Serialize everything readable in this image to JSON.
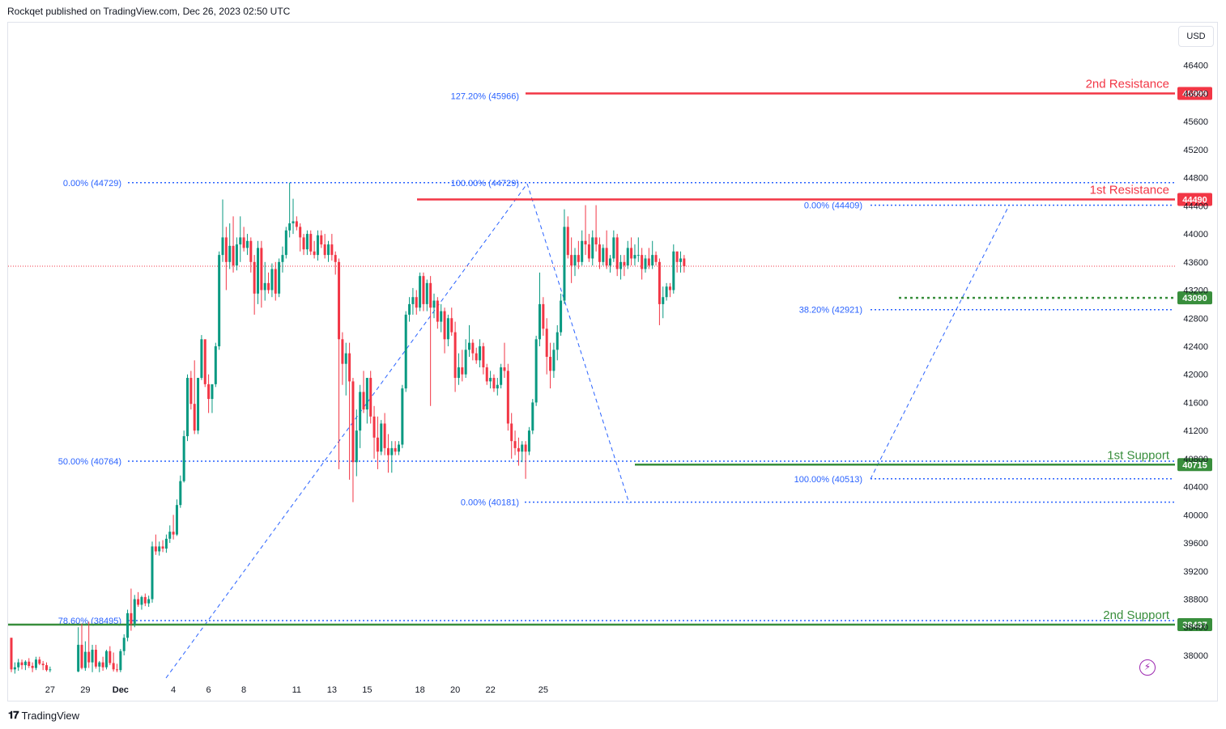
{
  "header": {
    "text": "Rockqet published on TradingView.com, Dec 26, 2023 02:50 UTC"
  },
  "footer": {
    "brand": "TradingView",
    "brand_icon": "tradingview-logo-icon"
  },
  "price_axis": {
    "currency": "USD"
  },
  "colors": {
    "up": "#089981",
    "down": "#f23645",
    "fib": "#2962ff",
    "resistance": "#f23645",
    "support": "#388e3c",
    "current_price_line": "#f23645",
    "axis_text": "#131722",
    "fib_text": "#2962ff"
  },
  "chart_data": {
    "type": "candlestick",
    "title": "",
    "xlabel": "",
    "ylabel": "",
    "ylim": [
      37700,
      46800
    ],
    "y_ticks": [
      38000,
      38400,
      38800,
      39200,
      39600,
      40000,
      40400,
      40800,
      41200,
      41600,
      42000,
      42400,
      42800,
      43200,
      43600,
      44000,
      44400,
      44800,
      45200,
      45600,
      46000,
      46400
    ],
    "x_ticks": [
      {
        "label": "27",
        "bar": 11
      },
      {
        "label": "29",
        "bar": 21
      },
      {
        "label": "Dec",
        "bar": 31
      },
      {
        "label": "4",
        "bar": 46
      },
      {
        "label": "6",
        "bar": 56
      },
      {
        "label": "8",
        "bar": 66
      },
      {
        "label": "11",
        "bar": 81
      },
      {
        "label": "13",
        "bar": 91
      },
      {
        "label": "15",
        "bar": 101
      },
      {
        "label": "18",
        "bar": 116
      },
      {
        "label": "20",
        "bar": 126
      },
      {
        "label": "22",
        "bar": 136
      },
      {
        "label": "25",
        "bar": 151
      }
    ],
    "bar_interval": "4h",
    "candles": [
      [
        38250,
        38250,
        37760,
        37800
      ],
      [
        37800,
        37900,
        37740,
        37830
      ],
      [
        37830,
        37950,
        37780,
        37900
      ],
      [
        37900,
        37940,
        37800,
        37860
      ],
      [
        37860,
        37930,
        37790,
        37910
      ],
      [
        37910,
        37960,
        37820,
        37850
      ],
      [
        37850,
        37900,
        37760,
        37820
      ],
      [
        37820,
        37980,
        37790,
        37940
      ],
      [
        37940,
        37980,
        37860,
        37880
      ],
      [
        37880,
        37920,
        37790,
        37860
      ],
      [
        37860,
        37900,
        37770,
        37790
      ],
      [
        37790,
        37840,
        37760,
        37800
      ],
      [
        null,
        null,
        null,
        null
      ],
      [
        null,
        null,
        null,
        null
      ],
      [
        null,
        null,
        null,
        null
      ],
      [
        null,
        null,
        null,
        null
      ],
      [
        null,
        null,
        null,
        null
      ],
      [
        null,
        null,
        null,
        null
      ],
      [
        null,
        null,
        null,
        null
      ],
      [
        37770,
        38400,
        37760,
        38150
      ],
      [
        38150,
        38450,
        37800,
        37820
      ],
      [
        37820,
        38200,
        37780,
        38050
      ],
      [
        38050,
        38480,
        37820,
        37900
      ],
      [
        37900,
        38150,
        37760,
        38080
      ],
      [
        38080,
        38150,
        37810,
        37840
      ],
      [
        37840,
        37920,
        37760,
        37900
      ],
      [
        37900,
        37980,
        37780,
        37830
      ],
      [
        37830,
        38080,
        37800,
        38060
      ],
      [
        38060,
        38130,
        37860,
        37890
      ],
      [
        37890,
        38040,
        37770,
        37800
      ],
      [
        37800,
        37880,
        37760,
        37790
      ],
      [
        37790,
        38090,
        37760,
        38060
      ],
      [
        38060,
        38300,
        38000,
        38250
      ],
      [
        38250,
        38650,
        38200,
        38600
      ],
      [
        38600,
        38950,
        38350,
        38450
      ],
      [
        38450,
        38860,
        38400,
        38800
      ],
      [
        38800,
        38900,
        38690,
        38720
      ],
      [
        38720,
        38850,
        38650,
        38830
      ],
      [
        38830,
        38880,
        38700,
        38740
      ],
      [
        38740,
        38850,
        38690,
        38800
      ],
      [
        38800,
        39620,
        38750,
        39550
      ],
      [
        39550,
        39720,
        39430,
        39480
      ],
      [
        39480,
        39620,
        39420,
        39550
      ],
      [
        39550,
        39640,
        39470,
        39520
      ],
      [
        39520,
        39720,
        39460,
        39660
      ],
      [
        39660,
        39850,
        39600,
        39760
      ],
      [
        39760,
        40000,
        39650,
        39720
      ],
      [
        39720,
        40220,
        39700,
        40140
      ],
      [
        40140,
        40560,
        40100,
        40480
      ],
      [
        40480,
        41200,
        40460,
        41120
      ],
      [
        41120,
        42000,
        41050,
        41950
      ],
      [
        41950,
        42050,
        41500,
        41580
      ],
      [
        41580,
        42200,
        41150,
        41200
      ],
      [
        41200,
        41950,
        41150,
        41950
      ],
      [
        41950,
        42560,
        41920,
        42500
      ],
      [
        42500,
        42200,
        41820,
        41860
      ],
      [
        41860,
        42000,
        41450,
        41650
      ],
      [
        41650,
        41840,
        41450,
        41860
      ],
      [
        41860,
        42450,
        41820,
        42400
      ],
      [
        42400,
        43750,
        42350,
        43700
      ],
      [
        43700,
        44490,
        43600,
        43950
      ],
      [
        43950,
        44100,
        43200,
        43600
      ],
      [
        43600,
        44150,
        43500,
        43830
      ],
      [
        43830,
        44250,
        43450,
        43550
      ],
      [
        43550,
        43950,
        43480,
        43850
      ],
      [
        43850,
        44250,
        43600,
        43950
      ],
      [
        43950,
        44100,
        43750,
        43800
      ],
      [
        43800,
        44000,
        43700,
        43900
      ],
      [
        43900,
        43950,
        43450,
        43600
      ],
      [
        43600,
        43700,
        42850,
        43150
      ],
      [
        43150,
        43900,
        43000,
        43800
      ],
      [
        43800,
        43900,
        42950,
        43200
      ],
      [
        43200,
        43600,
        43050,
        43300
      ],
      [
        43300,
        43450,
        43150,
        43200
      ],
      [
        43200,
        43580,
        43100,
        43500
      ],
      [
        43500,
        43600,
        43050,
        43150
      ],
      [
        43150,
        43650,
        43100,
        43600
      ],
      [
        43600,
        43820,
        43450,
        43700
      ],
      [
        43700,
        44100,
        43650,
        44050
      ],
      [
        44050,
        44729,
        43950,
        44150
      ],
      [
        44150,
        44500,
        44000,
        44180
      ],
      [
        44180,
        44250,
        44050,
        44100
      ],
      [
        44100,
        44150,
        43750,
        43950
      ],
      [
        43950,
        44000,
        43700,
        43780
      ],
      [
        43780,
        44050,
        43700,
        44000
      ],
      [
        44000,
        44050,
        43700,
        43750
      ],
      [
        43750,
        43900,
        43650,
        43700
      ],
      [
        43700,
        44050,
        43620,
        43980
      ],
      [
        43980,
        44050,
        43800,
        43850
      ],
      [
        43850,
        44000,
        43650,
        43700
      ],
      [
        43700,
        43900,
        43600,
        43850
      ],
      [
        43850,
        44000,
        43620,
        43700
      ],
      [
        43700,
        43750,
        43420,
        43600
      ],
      [
        43600,
        43650,
        40650,
        42500
      ],
      [
        42500,
        42600,
        41850,
        42150
      ],
      [
        42150,
        42450,
        41700,
        42300
      ],
      [
        42300,
        42450,
        40500,
        41900
      ],
      [
        41900,
        41950,
        40181,
        40750
      ],
      [
        40750,
        41500,
        40550,
        41200
      ],
      [
        41200,
        41850,
        40950,
        41750
      ],
      [
        41750,
        42050,
        41450,
        41500
      ],
      [
        41500,
        41950,
        41300,
        41950
      ],
      [
        41950,
        42050,
        41300,
        41400
      ],
      [
        41400,
        41550,
        40800,
        41100
      ],
      [
        41100,
        41400,
        40650,
        40900
      ],
      [
        40900,
        41350,
        40850,
        41300
      ],
      [
        41300,
        41450,
        40850,
        40950
      ],
      [
        40950,
        41150,
        40600,
        40850
      ],
      [
        40850,
        41050,
        40600,
        40950
      ],
      [
        40950,
        41050,
        40850,
        40900
      ],
      [
        40900,
        41050,
        40850,
        41000
      ],
      [
        41000,
        41850,
        40950,
        41800
      ],
      [
        41800,
        42900,
        41750,
        42850
      ],
      [
        42850,
        43100,
        42750,
        43000
      ],
      [
        43000,
        43230,
        42850,
        43100
      ],
      [
        43100,
        43200,
        42850,
        42950
      ],
      [
        42950,
        43450,
        42900,
        43400
      ],
      [
        43400,
        43450,
        42900,
        43000
      ],
      [
        43000,
        43350,
        42900,
        43300
      ],
      [
        43300,
        43400,
        41550,
        42950
      ],
      [
        42950,
        43150,
        42800,
        43050
      ],
      [
        43050,
        43100,
        42650,
        42750
      ],
      [
        42750,
        43000,
        42600,
        42900
      ],
      [
        42900,
        42950,
        42300,
        42500
      ],
      [
        42500,
        42850,
        42400,
        42800
      ],
      [
        42800,
        42950,
        42550,
        42600
      ],
      [
        42600,
        42750,
        41750,
        41950
      ],
      [
        41950,
        42300,
        41850,
        42100
      ],
      [
        42100,
        42350,
        41900,
        42000
      ],
      [
        42000,
        42500,
        41950,
        42350
      ],
      [
        42350,
        42700,
        42250,
        42450
      ],
      [
        42450,
        42500,
        42200,
        42300
      ],
      [
        42300,
        42380,
        42150,
        42200
      ],
      [
        42200,
        42500,
        42100,
        42400
      ],
      [
        42400,
        42450,
        42000,
        42100
      ],
      [
        42100,
        42150,
        41850,
        41900
      ],
      [
        41900,
        42050,
        41800,
        41950
      ],
      [
        41950,
        42000,
        41750,
        41800
      ],
      [
        41800,
        41950,
        41700,
        41850
      ],
      [
        41850,
        42150,
        41800,
        42100
      ],
      [
        42100,
        42450,
        41950,
        42050
      ],
      [
        42050,
        42150,
        41200,
        41300
      ],
      [
        41300,
        41450,
        40800,
        41050
      ],
      [
        41050,
        41200,
        40850,
        40950
      ],
      [
        40950,
        41100,
        40700,
        40900
      ],
      [
        40900,
        41050,
        40750,
        41000
      ],
      [
        41000,
        41050,
        40513,
        40900
      ],
      [
        40900,
        41250,
        40850,
        41200
      ],
      [
        41200,
        41650,
        41150,
        41600
      ],
      [
        41600,
        42550,
        41550,
        42500
      ],
      [
        42500,
        43450,
        42400,
        43000
      ],
      [
        43000,
        43100,
        42550,
        42650
      ],
      [
        42650,
        42800,
        42000,
        42250
      ],
      [
        42250,
        42450,
        41800,
        42050
      ],
      [
        42050,
        42450,
        41950,
        42350
      ],
      [
        42350,
        42700,
        42200,
        42600
      ],
      [
        42600,
        43150,
        42550,
        43050
      ],
      [
        43050,
        44350,
        43000,
        44100
      ],
      [
        44100,
        44250,
        43650,
        43700
      ],
      [
        43700,
        43950,
        43300,
        43550
      ],
      [
        43550,
        43800,
        43400,
        43700
      ],
      [
        43700,
        43900,
        43500,
        43600
      ],
      [
        43600,
        44050,
        43550,
        43900
      ],
      [
        43900,
        44409,
        43700,
        43850
      ],
      [
        43850,
        44000,
        43600,
        43650
      ],
      [
        43650,
        44050,
        43550,
        43950
      ],
      [
        43950,
        44409,
        43750,
        43850
      ],
      [
        43850,
        43950,
        43500,
        43600
      ],
      [
        43600,
        43850,
        43550,
        43800
      ],
      [
        43800,
        44050,
        43500,
        43550
      ],
      [
        43550,
        43700,
        43450,
        43650
      ],
      [
        43650,
        44050,
        43600,
        43950
      ],
      [
        43950,
        44000,
        43400,
        43500
      ],
      [
        43500,
        43700,
        43350,
        43600
      ],
      [
        43600,
        43700,
        43400,
        43550
      ],
      [
        43550,
        43900,
        43500,
        43800
      ],
      [
        43800,
        43950,
        43550,
        43650
      ],
      [
        43650,
        43850,
        43550,
        43700
      ],
      [
        43700,
        43950,
        43600,
        43700
      ],
      [
        43700,
        43800,
        43350,
        43500
      ],
      [
        43500,
        43700,
        43450,
        43650
      ],
      [
        43650,
        43800,
        43500,
        43550
      ],
      [
        43550,
        43900,
        43500,
        43700
      ],
      [
        43700,
        43750,
        43550,
        43600
      ],
      [
        43600,
        43650,
        42700,
        43000
      ],
      [
        43000,
        43250,
        42800,
        43100
      ],
      [
        43100,
        43300,
        43050,
        43250
      ],
      [
        43250,
        43300,
        43100,
        43200
      ],
      [
        43200,
        43850,
        43150,
        43750
      ],
      [
        43750,
        43750,
        43450,
        43600
      ],
      [
        43600,
        43750,
        43450,
        43650
      ],
      [
        43650,
        43700,
        43450,
        43540
      ]
    ],
    "current_price": 43540,
    "horizontal_levels": [
      {
        "name": "2nd Resistance",
        "value": 45999,
        "label": "45999",
        "kind": "resistance"
      },
      {
        "name": "1st Resistance",
        "value": 44490,
        "label": "44490",
        "kind": "resistance"
      },
      {
        "name": "",
        "value": 43090,
        "label": "43090",
        "kind": "support-dotted"
      },
      {
        "name": "1st Support",
        "value": 40715,
        "label": "40715",
        "kind": "support"
      },
      {
        "name": "2nd Support",
        "value": 38437,
        "label": "38437",
        "kind": "support"
      }
    ],
    "fib_levels": [
      {
        "label": "127.20% (45966)",
        "value": 45966
      },
      {
        "label": "0.00% (44729)",
        "value": 44729
      },
      {
        "label": "100.00% (44729)",
        "value": 44729
      },
      {
        "label": "0.00% (44409)",
        "value": 44409
      },
      {
        "label": "38.20% (42921)",
        "value": 42921
      },
      {
        "label": "50.00% (40764)",
        "value": 40764
      },
      {
        "label": "100.00% (40513)",
        "value": 40513
      },
      {
        "label": "0.00% (40181)",
        "value": 40181
      },
      {
        "label": "78.60% (38495)",
        "value": 38495
      }
    ]
  }
}
